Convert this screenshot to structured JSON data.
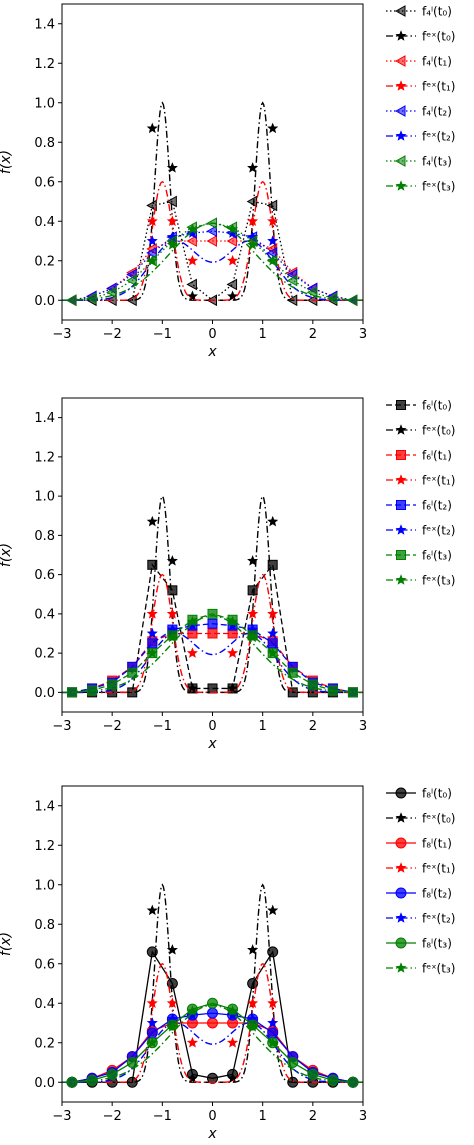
{
  "colors": {
    "t0": "#000000",
    "t1": "#ff0000",
    "t2": "#0000ff",
    "t3": "#008000"
  },
  "chart_data": [
    {
      "type": "line",
      "xlabel": "x",
      "ylabel": "f(x)",
      "xlim": [
        -3,
        3
      ],
      "ylim": [
        -0.1,
        1.5
      ],
      "xticks": [
        "−3",
        "−2",
        "−1",
        "0",
        "1",
        "2",
        "3"
      ],
      "yticks": [
        "0.0",
        "0.2",
        "0.4",
        "0.6",
        "0.8",
        "1.0",
        "1.2",
        "1.4"
      ],
      "approx_marker": "left-triangle",
      "approx_line": "dotted",
      "approx_x": [
        -2.8,
        -2.4,
        -2.0,
        -1.6,
        -1.2,
        -0.8,
        -0.4,
        0.0,
        0.4,
        0.8,
        1.2,
        1.6,
        2.0,
        2.4,
        2.8
      ],
      "exact_x": [
        -1.2,
        -0.8,
        -0.4,
        0.4,
        0.8,
        1.2
      ],
      "legend": [
        {
          "label": "f₄ˡ(t₀)",
          "series": "approx",
          "color_key": "t0"
        },
        {
          "label": "fᵉˣ(t₀)",
          "series": "exact",
          "color_key": "t0"
        },
        {
          "label": "f₄ˡ(t₁)",
          "series": "approx",
          "color_key": "t1"
        },
        {
          "label": "fᵉˣ(t₁)",
          "series": "exact",
          "color_key": "t1"
        },
        {
          "label": "f₄ˡ(t₂)",
          "series": "approx",
          "color_key": "t2"
        },
        {
          "label": "fᵉˣ(t₂)",
          "series": "exact",
          "color_key": "t2"
        },
        {
          "label": "f₄ˡ(t₃)",
          "series": "approx",
          "color_key": "t3"
        },
        {
          "label": "fᵉˣ(t₃)",
          "series": "exact",
          "color_key": "t3"
        }
      ],
      "series": [
        {
          "color_key": "t0",
          "approx_y": [
            0.0,
            0.0,
            0.0,
            0.0,
            0.48,
            0.5,
            0.08,
            0.0,
            0.08,
            0.5,
            0.48,
            0.0,
            0.0,
            0.0,
            0.0
          ],
          "exact_y": [
            0.87,
            0.67,
            0.02,
            0.02,
            0.67,
            0.87
          ]
        },
        {
          "color_key": "t1",
          "approx_y": [
            0.0,
            0.02,
            0.06,
            0.14,
            0.26,
            0.3,
            0.3,
            0.3,
            0.3,
            0.3,
            0.26,
            0.14,
            0.06,
            0.02,
            0.0
          ],
          "exact_y": [
            0.4,
            0.4,
            0.2,
            0.2,
            0.4,
            0.4
          ]
        },
        {
          "color_key": "t2",
          "approx_y": [
            0.0,
            0.02,
            0.06,
            0.13,
            0.24,
            0.32,
            0.34,
            0.35,
            0.34,
            0.32,
            0.24,
            0.13,
            0.06,
            0.02,
            0.0
          ],
          "exact_y": [
            0.3,
            0.32,
            0.34,
            0.34,
            0.32,
            0.3
          ]
        },
        {
          "color_key": "t3",
          "approx_y": [
            0.0,
            0.01,
            0.04,
            0.1,
            0.2,
            0.3,
            0.37,
            0.39,
            0.37,
            0.3,
            0.2,
            0.1,
            0.04,
            0.01,
            0.0
          ],
          "exact_y": [
            0.2,
            0.28,
            0.36,
            0.36,
            0.28,
            0.2
          ]
        }
      ]
    },
    {
      "type": "line",
      "xlabel": "x",
      "ylabel": "f(x)",
      "xlim": [
        -3,
        3
      ],
      "ylim": [
        -0.1,
        1.5
      ],
      "xticks": [
        "−3",
        "−2",
        "−1",
        "0",
        "1",
        "2",
        "3"
      ],
      "yticks": [
        "0.0",
        "0.2",
        "0.4",
        "0.6",
        "0.8",
        "1.0",
        "1.2",
        "1.4"
      ],
      "approx_marker": "square",
      "approx_line": "dashed",
      "approx_x": [
        -2.8,
        -2.4,
        -2.0,
        -1.6,
        -1.2,
        -0.8,
        -0.4,
        0.0,
        0.4,
        0.8,
        1.2,
        1.6,
        2.0,
        2.4,
        2.8
      ],
      "exact_x": [
        -1.2,
        -0.8,
        -0.4,
        0.4,
        0.8,
        1.2
      ],
      "legend": [
        {
          "label": "f₆ˡ(t₀)",
          "series": "approx",
          "color_key": "t0"
        },
        {
          "label": "fᵉˣ(t₀)",
          "series": "exact",
          "color_key": "t0"
        },
        {
          "label": "f₆ˡ(t₁)",
          "series": "approx",
          "color_key": "t1"
        },
        {
          "label": "fᵉˣ(t₁)",
          "series": "exact",
          "color_key": "t1"
        },
        {
          "label": "f₆ˡ(t₂)",
          "series": "approx",
          "color_key": "t2"
        },
        {
          "label": "fᵉˣ(t₂)",
          "series": "exact",
          "color_key": "t2"
        },
        {
          "label": "f₆ˡ(t₃)",
          "series": "approx",
          "color_key": "t3"
        },
        {
          "label": "fᵉˣ(t₃)",
          "series": "exact",
          "color_key": "t3"
        }
      ],
      "series": [
        {
          "color_key": "t0",
          "approx_y": [
            0.0,
            0.0,
            0.0,
            0.0,
            0.65,
            0.52,
            0.02,
            0.02,
            0.02,
            0.52,
            0.65,
            0.0,
            0.0,
            0.0,
            0.0
          ],
          "exact_y": [
            0.87,
            0.67,
            0.02,
            0.02,
            0.67,
            0.87
          ]
        },
        {
          "color_key": "t1",
          "approx_y": [
            0.0,
            0.02,
            0.06,
            0.13,
            0.26,
            0.3,
            0.3,
            0.3,
            0.3,
            0.3,
            0.26,
            0.13,
            0.06,
            0.02,
            0.0
          ],
          "exact_y": [
            0.4,
            0.4,
            0.2,
            0.2,
            0.4,
            0.4
          ]
        },
        {
          "color_key": "t2",
          "approx_y": [
            0.0,
            0.02,
            0.05,
            0.13,
            0.25,
            0.32,
            0.34,
            0.35,
            0.34,
            0.32,
            0.25,
            0.13,
            0.05,
            0.02,
            0.0
          ],
          "exact_y": [
            0.3,
            0.32,
            0.34,
            0.34,
            0.32,
            0.3
          ]
        },
        {
          "color_key": "t3",
          "approx_y": [
            0.0,
            0.01,
            0.04,
            0.1,
            0.2,
            0.29,
            0.37,
            0.4,
            0.37,
            0.29,
            0.2,
            0.1,
            0.04,
            0.01,
            0.0
          ],
          "exact_y": [
            0.2,
            0.28,
            0.36,
            0.36,
            0.28,
            0.2
          ]
        }
      ]
    },
    {
      "type": "line",
      "xlabel": "x",
      "ylabel": "f(x)",
      "xlim": [
        -3,
        3
      ],
      "ylim": [
        -0.1,
        1.5
      ],
      "xticks": [
        "−3",
        "−2",
        "−1",
        "0",
        "1",
        "2",
        "3"
      ],
      "yticks": [
        "0.0",
        "0.2",
        "0.4",
        "0.6",
        "0.8",
        "1.0",
        "1.2",
        "1.4"
      ],
      "approx_marker": "circle",
      "approx_line": "solid",
      "approx_x": [
        -2.8,
        -2.4,
        -2.0,
        -1.6,
        -1.2,
        -0.8,
        -0.4,
        0.0,
        0.4,
        0.8,
        1.2,
        1.6,
        2.0,
        2.4,
        2.8
      ],
      "exact_x": [
        -1.2,
        -0.8,
        -0.4,
        0.4,
        0.8,
        1.2
      ],
      "legend": [
        {
          "label": "f₈ˡ(t₀)",
          "series": "approx",
          "color_key": "t0"
        },
        {
          "label": "fᵉˣ(t₀)",
          "series": "exact",
          "color_key": "t0"
        },
        {
          "label": "f₈ˡ(t₁)",
          "series": "approx",
          "color_key": "t1"
        },
        {
          "label": "fᵉˣ(t₁)",
          "series": "exact",
          "color_key": "t1"
        },
        {
          "label": "f₈ˡ(t₂)",
          "series": "approx",
          "color_key": "t2"
        },
        {
          "label": "fᵉˣ(t₂)",
          "series": "exact",
          "color_key": "t2"
        },
        {
          "label": "f₈ˡ(t₃)",
          "series": "approx",
          "color_key": "t3"
        },
        {
          "label": "fᵉˣ(t₃)",
          "series": "exact",
          "color_key": "t3"
        }
      ],
      "series": [
        {
          "color_key": "t0",
          "approx_y": [
            0.0,
            0.0,
            0.0,
            0.0,
            0.66,
            0.5,
            0.04,
            0.02,
            0.04,
            0.5,
            0.66,
            0.0,
            0.0,
            0.0,
            0.0
          ],
          "exact_y": [
            0.87,
            0.67,
            0.02,
            0.02,
            0.67,
            0.87
          ]
        },
        {
          "color_key": "t1",
          "approx_y": [
            0.0,
            0.02,
            0.06,
            0.13,
            0.26,
            0.3,
            0.3,
            0.3,
            0.3,
            0.3,
            0.26,
            0.13,
            0.06,
            0.02,
            0.0
          ],
          "exact_y": [
            0.4,
            0.4,
            0.2,
            0.2,
            0.4,
            0.4
          ]
        },
        {
          "color_key": "t2",
          "approx_y": [
            0.0,
            0.02,
            0.05,
            0.13,
            0.25,
            0.32,
            0.34,
            0.35,
            0.34,
            0.32,
            0.25,
            0.13,
            0.05,
            0.02,
            0.0
          ],
          "exact_y": [
            0.3,
            0.32,
            0.34,
            0.34,
            0.32,
            0.3
          ]
        },
        {
          "color_key": "t3",
          "approx_y": [
            0.0,
            0.01,
            0.04,
            0.1,
            0.2,
            0.29,
            0.37,
            0.4,
            0.37,
            0.29,
            0.2,
            0.1,
            0.04,
            0.01,
            0.0
          ],
          "exact_y": [
            0.2,
            0.28,
            0.36,
            0.36,
            0.28,
            0.2
          ]
        }
      ]
    }
  ]
}
